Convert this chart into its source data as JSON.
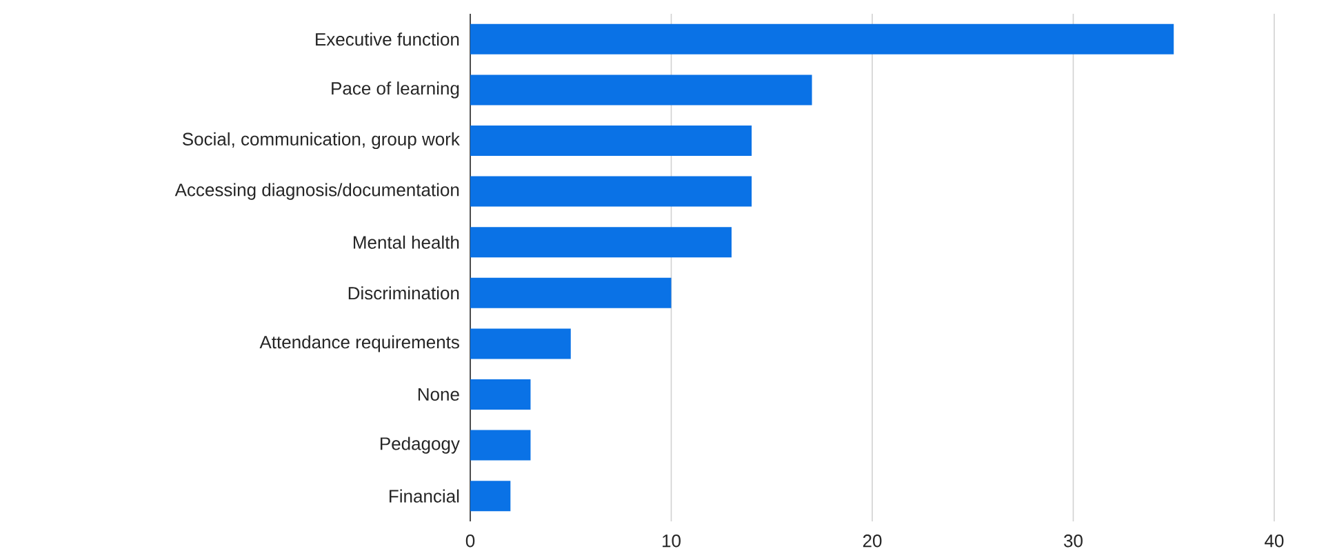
{
  "chart_data": {
    "type": "bar",
    "orientation": "horizontal",
    "categories": [
      "Executive function",
      "Pace of learning",
      "Social, communication, group work",
      "Accessing diagnosis/documentation",
      "Mental health",
      "Discrimination",
      "Attendance requirements",
      "None",
      "Pedagogy",
      "Financial"
    ],
    "values": [
      35,
      17,
      14,
      14,
      13,
      10,
      5,
      3,
      3,
      2
    ],
    "color": "#0a72e6",
    "xlim": [
      0,
      40
    ],
    "xticks": [
      0,
      10,
      20,
      30,
      40
    ],
    "grid": "x"
  }
}
